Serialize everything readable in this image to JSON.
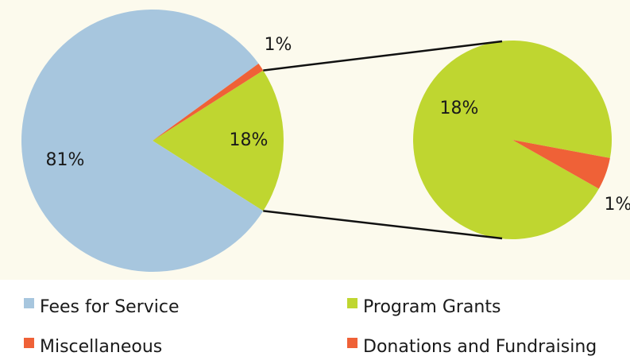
{
  "chart_data": {
    "type": "pie",
    "categories": [
      "Fees for Service",
      "Program Grants",
      "Miscellaneous",
      "Donations and Fundraising"
    ],
    "values": [
      81,
      18,
      1,
      1
    ],
    "value_labels": [
      "81%",
      "18%",
      "1%",
      "1%"
    ],
    "colors": [
      "#a7c6de",
      "#bfd630",
      "#ef6137",
      "#ef6137"
    ],
    "split": {
      "parent": 1,
      "members": [
        1,
        3
      ]
    }
  }
}
